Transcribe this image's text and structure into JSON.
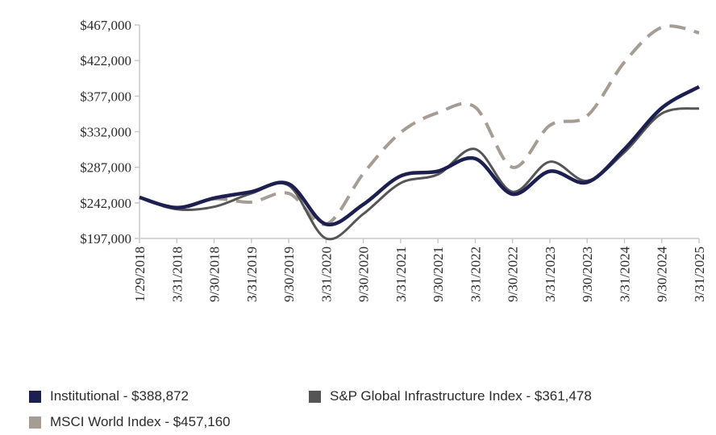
{
  "chart_data": {
    "type": "line",
    "title": "",
    "xlabel": "",
    "ylabel": "",
    "ylim": [
      197000,
      467000
    ],
    "y_ticks": [
      197000,
      242000,
      287000,
      332000,
      377000,
      422000,
      467000
    ],
    "y_tick_labels": [
      "$197,000",
      "$242,000",
      "$287,000",
      "$332,000",
      "$377,000",
      "$422,000",
      "$467,000"
    ],
    "categories": [
      "1/29/2018",
      "3/31/2018",
      "9/30/2018",
      "3/31/2019",
      "9/30/2019",
      "3/31/2020",
      "9/30/2020",
      "3/31/2021",
      "9/30/2021",
      "3/31/2022",
      "9/30/2022",
      "3/31/2023",
      "9/30/2023",
      "3/31/2024",
      "9/30/2024",
      "3/31/2025"
    ],
    "legend_position": "bottom",
    "series": [
      {
        "name": "MSCI World Index",
        "legend_label": "MSCI World Index - $457,160",
        "color": "#a59c93",
        "style": "dashed",
        "values": [
          249000,
          235000,
          247000,
          243000,
          254000,
          215000,
          279000,
          331000,
          356000,
          363000,
          287000,
          340000,
          352000,
          420000,
          464000,
          457160
        ]
      },
      {
        "name": "S&P Global Infrastructure Index",
        "legend_label": "S&P Global Infrastructure Index - $361,478",
        "color": "#555555",
        "style": "solid",
        "values": [
          249000,
          234000,
          237000,
          254000,
          264000,
          197000,
          228000,
          267000,
          278000,
          310000,
          256000,
          294000,
          270000,
          306000,
          355000,
          361478
        ]
      },
      {
        "name": "Institutional",
        "legend_label": "Institutional - $388,872",
        "color": "#1c1f4f",
        "style": "solid",
        "values": [
          249000,
          236000,
          248000,
          256000,
          266000,
          215000,
          240000,
          276000,
          282000,
          298000,
          253000,
          282000,
          268000,
          310000,
          362000,
          388872
        ]
      }
    ]
  }
}
